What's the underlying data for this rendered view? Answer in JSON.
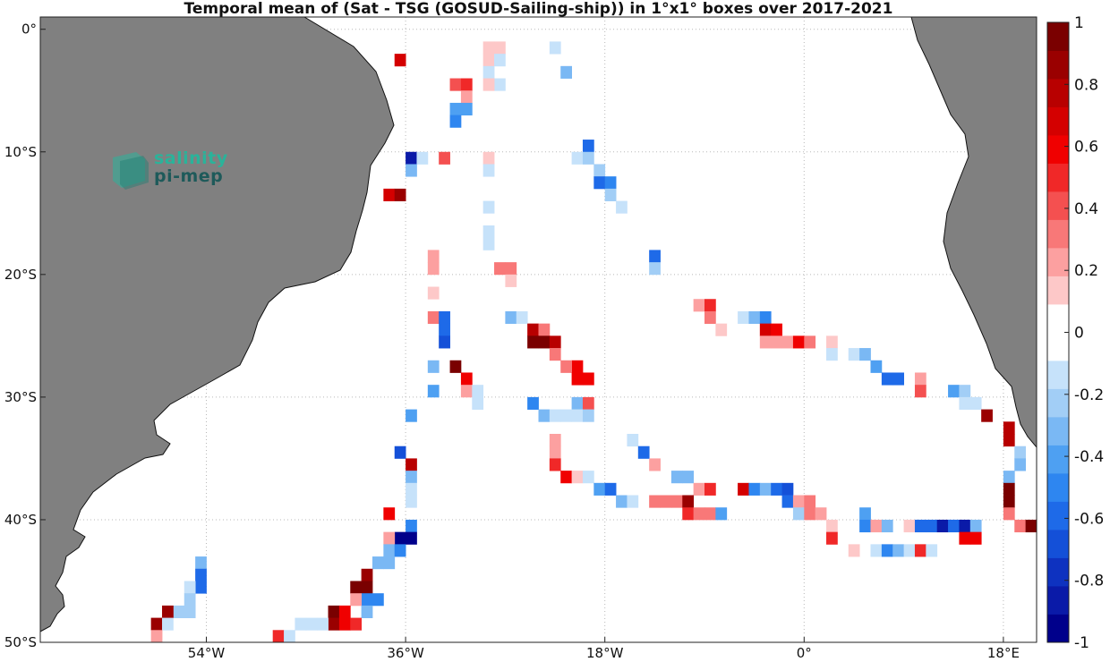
{
  "chart_data": {
    "type": "heatmap",
    "title": "Temporal mean of (Sat - TSG (GOSUD-Sailing-ship)) in 1°x1° boxes over 2017-2021",
    "xlim": [
      -69,
      21
    ],
    "ylim": [
      -50,
      1
    ],
    "x_ticks": [
      {
        "value": -54,
        "label": "54°W"
      },
      {
        "value": -36,
        "label": "36°W"
      },
      {
        "value": -18,
        "label": "18°W"
      },
      {
        "value": 0,
        "label": "0°"
      },
      {
        "value": 18,
        "label": "18°E"
      }
    ],
    "y_ticks": [
      {
        "value": 0,
        "label": "0°"
      },
      {
        "value": -10,
        "label": "10°S"
      },
      {
        "value": -20,
        "label": "20°S"
      },
      {
        "value": -30,
        "label": "30°S"
      },
      {
        "value": -40,
        "label": "40°S"
      },
      {
        "value": -50,
        "label": "50°S"
      }
    ],
    "grid": true,
    "colorbar": {
      "position": "right",
      "range": [
        -1,
        1
      ],
      "ticks": [
        -1,
        -0.8,
        -0.6,
        -0.4,
        -0.2,
        0,
        0.2,
        0.4,
        0.6,
        0.8,
        1
      ],
      "tick_labels": [
        "-1",
        "-0.8",
        "-0.6",
        "-0.4",
        "-0.2",
        "0",
        "0.2",
        "0.4",
        "0.6",
        "0.8",
        "1"
      ],
      "colors": [
        "#00008b",
        "#0a1aa8",
        "#0e32c0",
        "#1450d8",
        "#1e6ae8",
        "#2e86f0",
        "#4ea0f2",
        "#7ab8f4",
        "#a2cef6",
        "#c6e2fa",
        "#ffffff",
        "#ffffff",
        "#fdc8c8",
        "#fca0a0",
        "#f87878",
        "#f45050",
        "#f02828",
        "#f00000",
        "#d40000",
        "#b80000",
        "#9a0000",
        "#7a0000"
      ]
    },
    "land_color": "#808080",
    "cells": [
      [
        -37,
        -2,
        0.7
      ],
      [
        -29,
        -1,
        0.15
      ],
      [
        -28,
        -1,
        0.15
      ],
      [
        -23,
        -1,
        -0.15
      ],
      [
        -29,
        -2,
        0.15
      ],
      [
        -28,
        -2,
        -0.15
      ],
      [
        -22,
        -3,
        -0.3
      ],
      [
        -29,
        -3,
        -0.15
      ],
      [
        -32,
        -4,
        0.4
      ],
      [
        -31,
        -4,
        0.5
      ],
      [
        -28,
        -4,
        -0.15
      ],
      [
        -29,
        -4,
        0.15
      ],
      [
        -31,
        -5,
        0.2
      ],
      [
        -32,
        -6,
        -0.4
      ],
      [
        -31,
        -6,
        -0.4
      ],
      [
        -32,
        -7,
        -0.5
      ],
      [
        -36,
        -10,
        -0.9
      ],
      [
        -35,
        -10,
        -0.1
      ],
      [
        -33,
        -10,
        0.4
      ],
      [
        -29,
        -10,
        0.15
      ],
      [
        -36,
        -11,
        -0.3
      ],
      [
        -29,
        -11,
        -0.1
      ],
      [
        -38,
        -13,
        0.7
      ],
      [
        -37,
        -13,
        0.9
      ],
      [
        -29,
        -14,
        -0.1
      ],
      [
        -29,
        -16,
        -0.1
      ],
      [
        -29,
        -17,
        -0.1
      ],
      [
        -20,
        -9,
        -0.55
      ],
      [
        -21,
        -10,
        -0.15
      ],
      [
        -20,
        -10,
        -0.2
      ],
      [
        -19,
        -11,
        -0.2
      ],
      [
        -19,
        -12,
        -0.6
      ],
      [
        -18,
        -12,
        -0.5
      ],
      [
        -18,
        -13,
        -0.2
      ],
      [
        -17,
        -14,
        -0.1
      ],
      [
        -14,
        -18,
        -0.6
      ],
      [
        -14,
        -19,
        -0.2
      ],
      [
        -34,
        -18,
        0.2
      ],
      [
        -34,
        -19,
        0.2
      ],
      [
        -34,
        -21,
        0.15
      ],
      [
        -28,
        -19,
        0.35
      ],
      [
        -27,
        -19,
        0.35
      ],
      [
        -27,
        -20,
        0.15
      ],
      [
        -34,
        -23,
        0.35
      ],
      [
        -33,
        -23,
        -0.6
      ],
      [
        -33,
        -24,
        -0.6
      ],
      [
        -33,
        -25,
        -0.7
      ],
      [
        -27,
        -23,
        -0.3
      ],
      [
        -26,
        -23,
        -0.1
      ],
      [
        -25,
        -24,
        0.8
      ],
      [
        -24,
        -24,
        0.35
      ],
      [
        -25,
        -25,
        0.95
      ],
      [
        -24,
        -25,
        0.95
      ],
      [
        -23,
        -25,
        0.8
      ],
      [
        -23,
        -26,
        0.35
      ],
      [
        -21,
        -27,
        0.6
      ],
      [
        -22,
        -27,
        0.3
      ],
      [
        -21,
        -28,
        0.6
      ],
      [
        -20,
        -28,
        0.6
      ],
      [
        -34,
        -27,
        -0.3
      ],
      [
        -32,
        -27,
        0.95
      ],
      [
        -31,
        -28,
        0.6
      ],
      [
        -34,
        -29,
        -0.4
      ],
      [
        -31,
        -29,
        0.2
      ],
      [
        -30,
        -29,
        -0.15
      ],
      [
        -30,
        -30,
        -0.1
      ],
      [
        -36,
        -31,
        -0.4
      ],
      [
        -25,
        -30,
        -0.5
      ],
      [
        -21,
        -30,
        -0.3
      ],
      [
        -20,
        -30,
        0.4
      ],
      [
        -24,
        -31,
        -0.3
      ],
      [
        -23,
        -31,
        -0.1
      ],
      [
        -22,
        -31,
        -0.15
      ],
      [
        -21,
        -31,
        -0.1
      ],
      [
        -20,
        -31,
        -0.2
      ],
      [
        -10,
        -22,
        0.2
      ],
      [
        -9,
        -22,
        0.5
      ],
      [
        -9,
        -23,
        0.3
      ],
      [
        -8,
        -24,
        0.15
      ],
      [
        -6,
        -23,
        -0.1
      ],
      [
        -5,
        -23,
        -0.3
      ],
      [
        -4,
        -23,
        -0.5
      ],
      [
        -4,
        -24,
        0.7
      ],
      [
        -3,
        -24,
        0.6
      ],
      [
        -4,
        -25,
        0.2
      ],
      [
        -3,
        -25,
        0.2
      ],
      [
        -2,
        -25,
        0.2
      ],
      [
        -1,
        -25,
        0.6
      ],
      [
        0,
        -25,
        0.35
      ],
      [
        2,
        -25,
        0.15
      ],
      [
        2,
        -26,
        -0.15
      ],
      [
        4,
        -26,
        -0.15
      ],
      [
        5,
        -26,
        -0.3
      ],
      [
        6,
        -27,
        -0.4
      ],
      [
        7,
        -28,
        -0.6
      ],
      [
        8,
        -28,
        -0.6
      ],
      [
        10,
        -28,
        0.2
      ],
      [
        10,
        -29,
        0.4
      ],
      [
        13,
        -29,
        -0.4
      ],
      [
        14,
        -29,
        -0.2
      ],
      [
        14,
        -30,
        -0.1
      ],
      [
        15,
        -30,
        -0.1
      ],
      [
        16,
        -31,
        0.85
      ],
      [
        18,
        -32,
        0.75
      ],
      [
        18,
        -33,
        0.75
      ],
      [
        19,
        -34,
        -0.2
      ],
      [
        19,
        -35,
        -0.35
      ],
      [
        -37,
        -34,
        -0.7
      ],
      [
        -36,
        -35,
        0.8
      ],
      [
        -36,
        -36,
        -0.35
      ],
      [
        -36,
        -37,
        -0.1
      ],
      [
        -36,
        -38,
        -0.1
      ],
      [
        -16,
        -33,
        -0.1
      ],
      [
        -15,
        -34,
        -0.6
      ],
      [
        -23,
        -33,
        0.2
      ],
      [
        -23,
        -34,
        0.2
      ],
      [
        -23,
        -35,
        0.5
      ],
      [
        -22,
        -36,
        0.6
      ],
      [
        -21,
        -36,
        0.15
      ],
      [
        -20,
        -36,
        -0.1
      ],
      [
        -19,
        -37,
        -0.4
      ],
      [
        -18,
        -37,
        -0.55
      ],
      [
        -17,
        -38,
        -0.3
      ],
      [
        -16,
        -38,
        -0.1
      ],
      [
        -14,
        -35,
        0.2
      ],
      [
        -12,
        -36,
        -0.3
      ],
      [
        -11,
        -36,
        -0.3
      ],
      [
        -10,
        -37,
        0.2
      ],
      [
        -9,
        -37,
        0.5
      ],
      [
        -14,
        -38,
        0.35
      ],
      [
        -13,
        -38,
        0.35
      ],
      [
        -12,
        -38,
        0.35
      ],
      [
        -11,
        -38,
        0.9
      ],
      [
        -11,
        -39,
        0.5
      ],
      [
        -10,
        -39,
        0.35
      ],
      [
        -9,
        -39,
        0.35
      ],
      [
        -8,
        -39,
        -0.4
      ],
      [
        -6,
        -37,
        0.7
      ],
      [
        -5,
        -37,
        -0.5
      ],
      [
        -4,
        -37,
        -0.3
      ],
      [
        -3,
        -37,
        -0.6
      ],
      [
        -2,
        -37,
        -0.7
      ],
      [
        -2,
        -38,
        -0.6
      ],
      [
        -1,
        -38,
        0.25
      ],
      [
        0,
        -38,
        0.35
      ],
      [
        -1,
        -39,
        -0.2
      ],
      [
        0,
        -39,
        0.35
      ],
      [
        1,
        -39,
        0.2
      ],
      [
        2,
        -40,
        0.15
      ],
      [
        2,
        -41,
        0.5
      ],
      [
        5,
        -39,
        -0.4
      ],
      [
        5,
        -40,
        -0.5
      ],
      [
        6,
        -40,
        0.2
      ],
      [
        7,
        -40,
        -0.3
      ],
      [
        9,
        -40,
        0.15
      ],
      [
        10,
        -40,
        -0.6
      ],
      [
        11,
        -40,
        -0.6
      ],
      [
        12,
        -40,
        -0.9
      ],
      [
        13,
        -40,
        -0.55
      ],
      [
        14,
        -40,
        -0.9
      ],
      [
        15,
        -40,
        -0.3
      ],
      [
        14,
        -41,
        0.6
      ],
      [
        15,
        -41,
        0.6
      ],
      [
        18,
        -36,
        -0.3
      ],
      [
        18,
        -37,
        0.95
      ],
      [
        18,
        -38,
        0.95
      ],
      [
        18,
        -39,
        0.3
      ],
      [
        19,
        -40,
        0.3
      ],
      [
        20,
        -40,
        0.95
      ],
      [
        4,
        -42,
        0.15
      ],
      [
        6,
        -42,
        -0.15
      ],
      [
        7,
        -42,
        -0.5
      ],
      [
        8,
        -42,
        -0.3
      ],
      [
        9,
        -42,
        -0.1
      ],
      [
        10,
        -42,
        0.5
      ],
      [
        11,
        -42,
        -0.15
      ],
      [
        -38,
        -39,
        0.6
      ],
      [
        -36,
        -40,
        -0.5
      ],
      [
        -37,
        -41,
        -0.95
      ],
      [
        -36,
        -41,
        -0.95
      ],
      [
        -38,
        -41,
        0.2
      ],
      [
        -38,
        -42,
        -0.3
      ],
      [
        -37,
        -42,
        -0.5
      ],
      [
        -39,
        -43,
        -0.3
      ],
      [
        -38,
        -43,
        -0.3
      ],
      [
        -55,
        -43,
        -0.3
      ],
      [
        -55,
        -44,
        -0.6
      ],
      [
        -55,
        -45,
        -0.6
      ],
      [
        -56,
        -45,
        -0.15
      ],
      [
        -56,
        -46,
        -0.2
      ],
      [
        -57,
        -47,
        -0.2
      ],
      [
        -56,
        -47,
        -0.2
      ],
      [
        -58,
        -47,
        0.9
      ],
      [
        -59,
        -48,
        0.9
      ],
      [
        -58,
        -48,
        -0.1
      ],
      [
        -59,
        -49,
        0.2
      ],
      [
        -40,
        -44,
        0.9
      ],
      [
        -41,
        -45,
        0.95
      ],
      [
        -40,
        -45,
        0.95
      ],
      [
        -39,
        -46,
        -0.5
      ],
      [
        -40,
        -46,
        -0.5
      ],
      [
        -41,
        -46,
        0.2
      ],
      [
        -40,
        -47,
        -0.3
      ],
      [
        -43,
        -47,
        0.95
      ],
      [
        -42,
        -47,
        0.6
      ],
      [
        -43,
        -48,
        0.9
      ],
      [
        -42,
        -48,
        0.6
      ],
      [
        -41,
        -48,
        0.5
      ],
      [
        -44,
        -48,
        -0.1
      ],
      [
        -45,
        -48,
        -0.1
      ],
      [
        -46,
        -48,
        -0.1
      ],
      [
        -48,
        -49,
        0.5
      ],
      [
        -47,
        -49,
        -0.1
      ]
    ]
  },
  "logo": {
    "line1": "salinity",
    "line2": "pi-mep"
  }
}
